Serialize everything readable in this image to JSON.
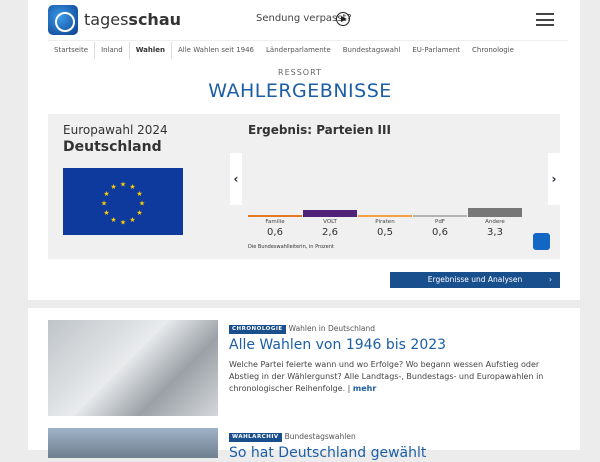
{
  "header": {
    "brand_light": "tages",
    "brand_bold": "schau",
    "missed": "Sendung verpasst?"
  },
  "nav": [
    "Startseite",
    "Inland",
    "Wahlen",
    "Alle Wahlen seit 1946",
    "Länderparlamente",
    "Bundestagswahl",
    "EU-Parlament",
    "Chronologie"
  ],
  "section": {
    "ressort": "RESSORT",
    "title": "WAHLERGEBNISSE"
  },
  "election": {
    "name": "Europawahl 2024",
    "region": "Deutschland"
  },
  "chart_data": {
    "type": "bar",
    "title": "Ergebnis: Parteien III",
    "categories": [
      "Familie",
      "VOLT",
      "Piraten",
      "PdF",
      "Andere"
    ],
    "values": [
      0.6,
      2.6,
      0.5,
      0.6,
      3.3
    ],
    "value_labels": [
      "0,6",
      "2,6",
      "0,5",
      "0,6",
      "3,3"
    ],
    "colors": [
      "#e87722",
      "#4f2378",
      "#f3a044",
      "#b3b3b3",
      "#777777"
    ],
    "source": "Die Bundeswahlleiterin, in Prozent"
  },
  "button": "Ergebnisse und Analysen",
  "articles": [
    {
      "tag": "CHRONOLOGIE",
      "kicker": "Wahlen in Deutschland",
      "title": "Alle Wahlen von 1946 bis 2023",
      "text": "Welche Partei feierte wann und wo Erfolge? Wo begann wessen Aufstieg oder Abstieg in der Wählergunst? Alle Landtags-, Bundestags- und Europawahlen in chronologischer Reihenfolge.",
      "more": "mehr"
    },
    {
      "tag": "WAHLARCHIV",
      "kicker": "Bundestagswahlen",
      "title": "So hat Deutschland gewählt"
    }
  ]
}
